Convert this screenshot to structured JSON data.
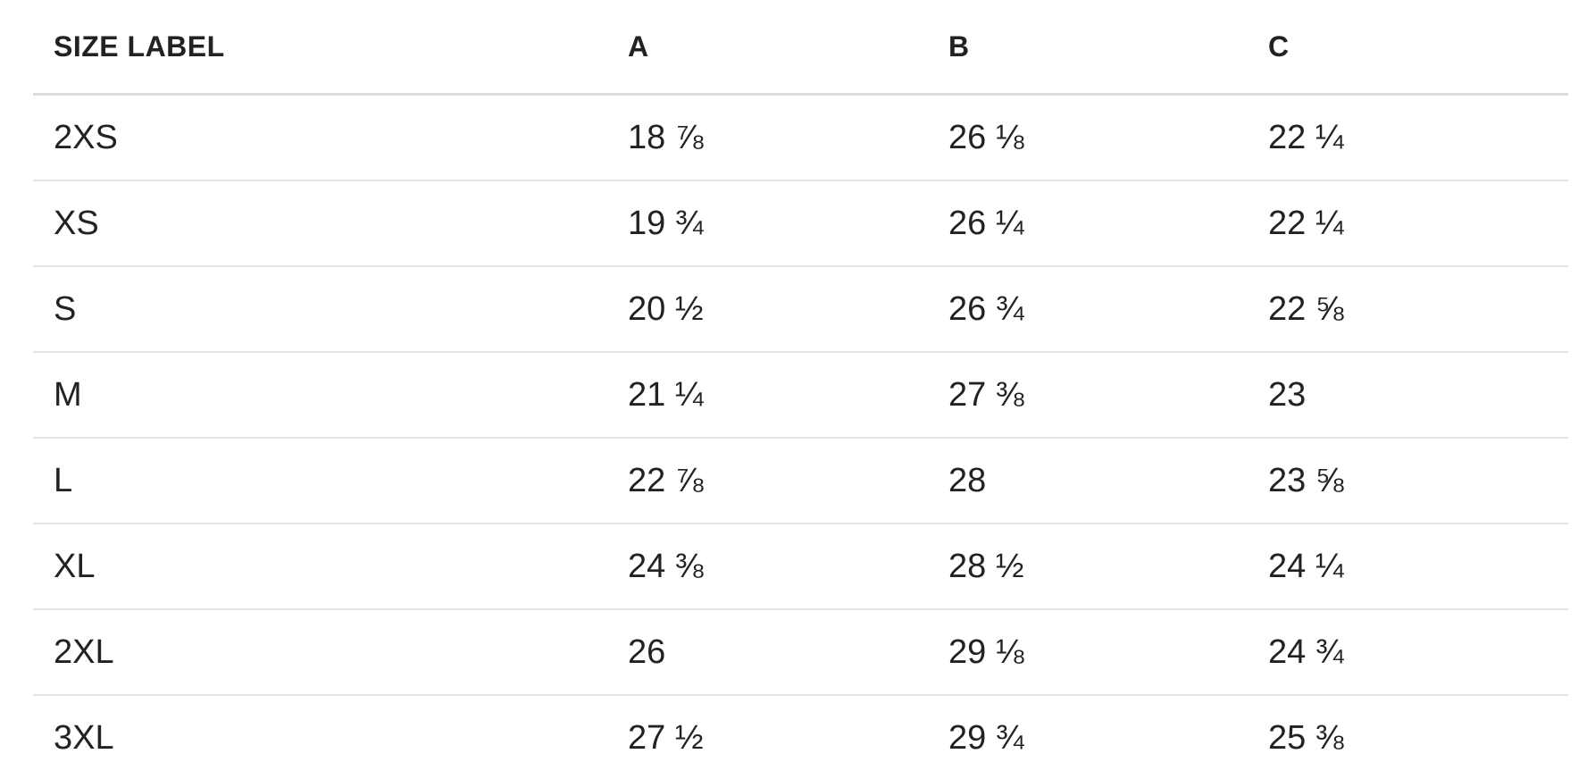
{
  "size_chart": {
    "columns": [
      {
        "key": "size",
        "label": "SIZE LABEL"
      },
      {
        "key": "a",
        "label": "A"
      },
      {
        "key": "b",
        "label": "B"
      },
      {
        "key": "c",
        "label": "C"
      }
    ],
    "rows": [
      {
        "size": "2XS",
        "a": "18 ⅞",
        "b": "26 ⅛",
        "c": "22 ¼"
      },
      {
        "size": "XS",
        "a": "19 ¾",
        "b": "26 ¼",
        "c": "22 ¼"
      },
      {
        "size": "S",
        "a": "20 ½",
        "b": "26 ¾",
        "c": "22 ⅝"
      },
      {
        "size": "M",
        "a": "21 ¼",
        "b": "27 ⅜",
        "c": "23"
      },
      {
        "size": "L",
        "a": "22 ⅞",
        "b": "28",
        "c": "23 ⅝"
      },
      {
        "size": "XL",
        "a": "24 ⅜",
        "b": "28 ½",
        "c": "24 ¼"
      },
      {
        "size": "2XL",
        "a": "26",
        "b": "29 ⅛",
        "c": "24 ¾"
      },
      {
        "size": "3XL",
        "a": "27 ½",
        "b": "29 ¾",
        "c": "25 ⅜"
      }
    ],
    "colors": {
      "text": "#222222",
      "header_divider": "#dcdcdc",
      "row_divider": "#e4e4e4",
      "background": "#ffffff"
    }
  }
}
